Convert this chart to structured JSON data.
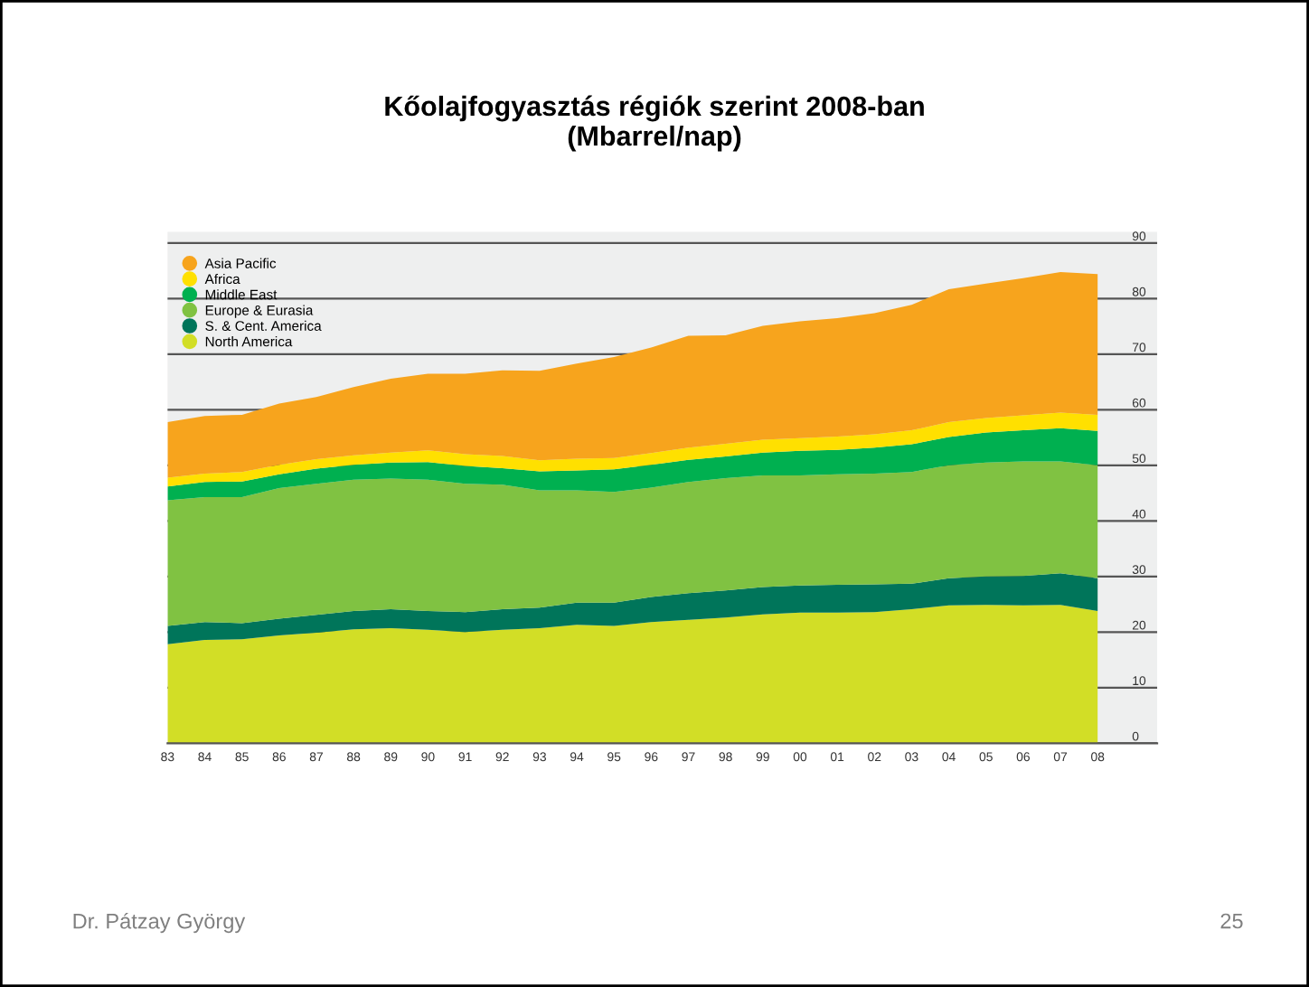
{
  "chart_data": {
    "type": "area",
    "stacked": true,
    "title": "Kőolajfogyasztás régiók szerint 2008-ban\n(Mbarrel/nap)",
    "categories": [
      "83",
      "84",
      "85",
      "86",
      "87",
      "88",
      "89",
      "90",
      "91",
      "92",
      "93",
      "94",
      "95",
      "96",
      "97",
      "98",
      "99",
      "00",
      "01",
      "02",
      "03",
      "04",
      "05",
      "06",
      "07",
      "08"
    ],
    "series": [
      {
        "name": "North America",
        "color": "#d2de26",
        "values": [
          17.8,
          18.6,
          18.7,
          19.4,
          19.9,
          20.5,
          20.7,
          20.4,
          20.0,
          20.4,
          20.7,
          21.3,
          21.1,
          21.8,
          22.2,
          22.6,
          23.2,
          23.5,
          23.5,
          23.6,
          24.1,
          24.8,
          24.9,
          24.8,
          24.9,
          23.8
        ]
      },
      {
        "name": "S. & Cent. America",
        "color": "#00755a",
        "values": [
          3.3,
          3.2,
          2.9,
          3.0,
          3.2,
          3.3,
          3.4,
          3.4,
          3.6,
          3.7,
          3.7,
          4.0,
          4.2,
          4.5,
          4.8,
          4.9,
          4.9,
          4.9,
          5.0,
          5.0,
          4.6,
          4.9,
          5.1,
          5.3,
          5.7,
          5.9
        ]
      },
      {
        "name": "Europe & Eurasia",
        "color": "#80c242",
        "values": [
          22.6,
          22.5,
          22.7,
          23.5,
          23.6,
          23.6,
          23.5,
          23.6,
          23.1,
          22.4,
          21.1,
          20.2,
          19.9,
          19.7,
          20.0,
          20.2,
          20.1,
          19.8,
          19.9,
          19.9,
          20.1,
          20.3,
          20.5,
          20.6,
          20.1,
          20.3
        ]
      },
      {
        "name": "Middle East",
        "color": "#00b050",
        "values": [
          2.5,
          2.7,
          2.8,
          2.5,
          2.7,
          2.7,
          2.9,
          3.2,
          3.2,
          3.0,
          3.4,
          3.6,
          4.1,
          4.1,
          4.0,
          3.9,
          4.1,
          4.4,
          4.4,
          4.7,
          5.0,
          5.1,
          5.4,
          5.6,
          6.0,
          6.2
        ]
      },
      {
        "name": "Africa",
        "color": "#ffe000",
        "values": [
          1.6,
          1.5,
          1.7,
          1.7,
          1.7,
          1.7,
          1.8,
          2.1,
          2.1,
          2.2,
          2.0,
          2.1,
          2.0,
          2.1,
          2.2,
          2.3,
          2.3,
          2.3,
          2.4,
          2.4,
          2.5,
          2.7,
          2.6,
          2.7,
          2.8,
          2.9
        ]
      },
      {
        "name": "Asia Pacific",
        "color": "#f7a41d",
        "values": [
          10.0,
          10.4,
          10.3,
          11.0,
          11.2,
          12.3,
          13.3,
          13.8,
          14.5,
          15.4,
          16.1,
          17.1,
          18.2,
          19.0,
          20.1,
          19.5,
          20.5,
          21.0,
          21.3,
          21.8,
          22.6,
          23.9,
          24.2,
          24.7,
          25.3,
          25.3
        ]
      }
    ],
    "ylim": [
      0,
      92
    ],
    "yticks": [
      0,
      10,
      20,
      30,
      40,
      50,
      60,
      70,
      80,
      90
    ],
    "grid": "y",
    "legend": "top left",
    "annotations": [
      "Dr. Pátzay György",
      "25"
    ]
  }
}
